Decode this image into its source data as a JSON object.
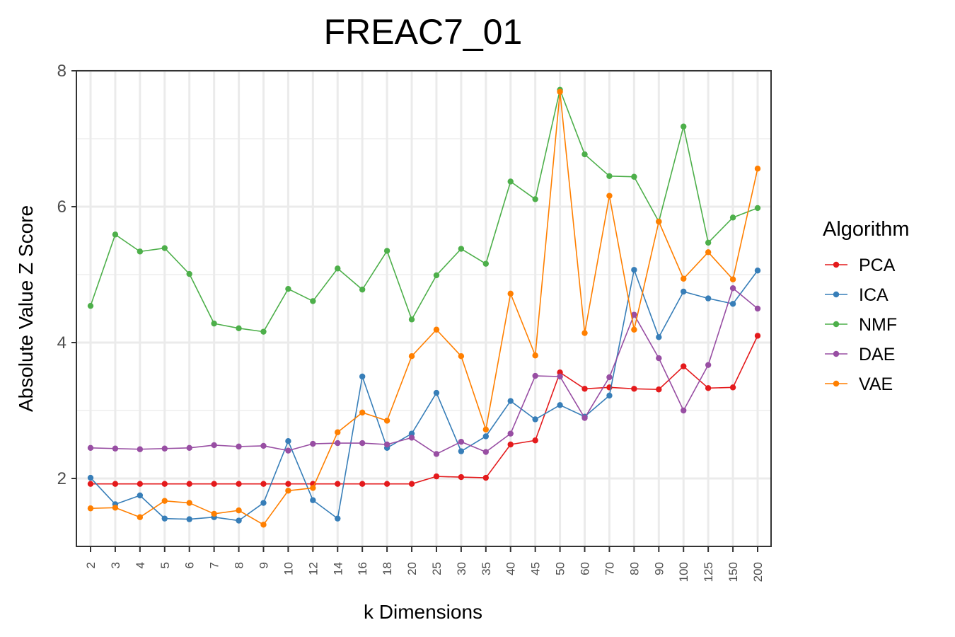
{
  "chart_data": {
    "type": "line",
    "title": "FREAC7_01",
    "xlabel": "k Dimensions",
    "ylabel": "Absolute Value Z Score",
    "categories": [
      "2",
      "3",
      "4",
      "5",
      "6",
      "7",
      "8",
      "9",
      "10",
      "12",
      "14",
      "16",
      "18",
      "20",
      "25",
      "30",
      "35",
      "40",
      "45",
      "50",
      "60",
      "70",
      "80",
      "90",
      "100",
      "125",
      "150",
      "200"
    ],
    "ylim": [
      1.0,
      8.0
    ],
    "yticks": [
      2,
      4,
      6,
      8
    ],
    "y_tick_labels": [
      "2",
      "4",
      "6",
      "8"
    ],
    "grid": true,
    "legend": {
      "title": "Algorithm",
      "position": "right"
    },
    "series": [
      {
        "name": "PCA",
        "color": "#e41a1c",
        "values": [
          1.92,
          1.92,
          1.92,
          1.92,
          1.92,
          1.92,
          1.92,
          1.92,
          1.92,
          1.92,
          1.92,
          1.92,
          1.92,
          1.92,
          2.03,
          2.02,
          2.01,
          2.5,
          2.56,
          3.56,
          3.32,
          3.34,
          3.32,
          3.31,
          3.65,
          3.33,
          3.34,
          4.1
        ]
      },
      {
        "name": "ICA",
        "color": "#377eb8",
        "values": [
          2.01,
          1.62,
          1.75,
          1.41,
          1.4,
          1.43,
          1.38,
          1.64,
          2.55,
          1.68,
          1.41,
          3.5,
          2.45,
          2.66,
          3.26,
          2.4,
          2.62,
          3.14,
          2.87,
          3.08,
          2.91,
          3.22,
          5.07,
          4.08,
          4.75,
          4.65,
          4.57,
          5.06
        ]
      },
      {
        "name": "NMF",
        "color": "#4daf4a",
        "values": [
          4.54,
          5.59,
          5.34,
          5.39,
          5.01,
          4.28,
          4.21,
          4.16,
          4.79,
          4.61,
          5.09,
          4.78,
          5.35,
          4.34,
          4.99,
          5.38,
          5.16,
          6.37,
          6.11,
          7.72,
          6.77,
          6.45,
          6.44,
          5.78,
          7.18,
          5.47,
          5.84,
          5.98
        ]
      },
      {
        "name": "DAE",
        "color": "#984ea3",
        "values": [
          2.45,
          2.44,
          2.43,
          2.44,
          2.45,
          2.49,
          2.47,
          2.48,
          2.41,
          2.51,
          2.52,
          2.52,
          2.5,
          2.6,
          2.36,
          2.54,
          2.39,
          2.66,
          3.51,
          3.5,
          2.89,
          3.49,
          4.41,
          3.77,
          3.0,
          3.67,
          4.8,
          4.5
        ]
      },
      {
        "name": "VAE",
        "color": "#ff7f00",
        "values": [
          1.56,
          1.57,
          1.43,
          1.67,
          1.64,
          1.48,
          1.53,
          1.32,
          1.82,
          1.86,
          2.68,
          2.97,
          2.85,
          3.8,
          4.19,
          3.8,
          2.72,
          4.72,
          3.81,
          7.69,
          4.14,
          6.16,
          4.19,
          5.78,
          4.94,
          5.33,
          4.93,
          6.56
        ]
      }
    ]
  }
}
